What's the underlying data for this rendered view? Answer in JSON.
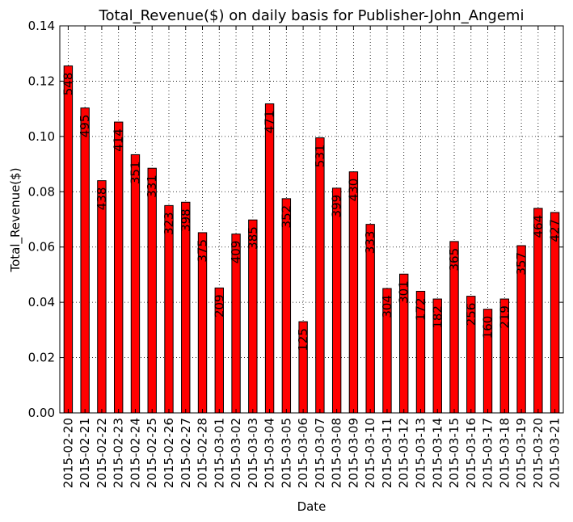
{
  "chart_data": {
    "type": "bar",
    "title": "Total_Revenue($) on daily basis for Publisher-John_Angemi",
    "xlabel": "Date",
    "ylabel": "Total_Revenue($)",
    "ylim": [
      0,
      0.14
    ],
    "yticks": [
      "0.00",
      "0.02",
      "0.04",
      "0.06",
      "0.08",
      "0.10",
      "0.12",
      "0.14"
    ],
    "grid": true,
    "legend": "none",
    "bar_color": "#ff0000",
    "categories": [
      "2015-02-20",
      "2015-02-21",
      "2015-02-22",
      "2015-02-23",
      "2015-02-24",
      "2015-02-25",
      "2015-02-26",
      "2015-02-27",
      "2015-02-28",
      "2015-03-01",
      "2015-03-02",
      "2015-03-03",
      "2015-03-04",
      "2015-03-05",
      "2015-03-06",
      "2015-03-07",
      "2015-03-08",
      "2015-03-09",
      "2015-03-10",
      "2015-03-11",
      "2015-03-12",
      "2015-03-13",
      "2015-03-14",
      "2015-03-15",
      "2015-03-16",
      "2015-03-17",
      "2015-03-18",
      "2015-03-19",
      "2015-03-20",
      "2015-03-21"
    ],
    "values": [
      0.1255,
      0.1103,
      0.084,
      0.1052,
      0.0934,
      0.0885,
      0.075,
      0.0762,
      0.0652,
      0.0452,
      0.0647,
      0.0698,
      0.1118,
      0.0775,
      0.033,
      0.0995,
      0.0813,
      0.0872,
      0.0682,
      0.045,
      0.0502,
      0.044,
      0.0412,
      0.062,
      0.0422,
      0.0375,
      0.0412,
      0.0605,
      0.074,
      0.0725
    ],
    "data_labels": [
      "548",
      "495",
      "438",
      "414",
      "351",
      "331",
      "323",
      "398",
      "375",
      "209",
      "409",
      "385",
      "471",
      "352",
      "125",
      "531",
      "399",
      "430",
      "333",
      "304",
      "301",
      "172",
      "182",
      "365",
      "256",
      "160",
      "219",
      "357",
      "464",
      "427"
    ]
  }
}
